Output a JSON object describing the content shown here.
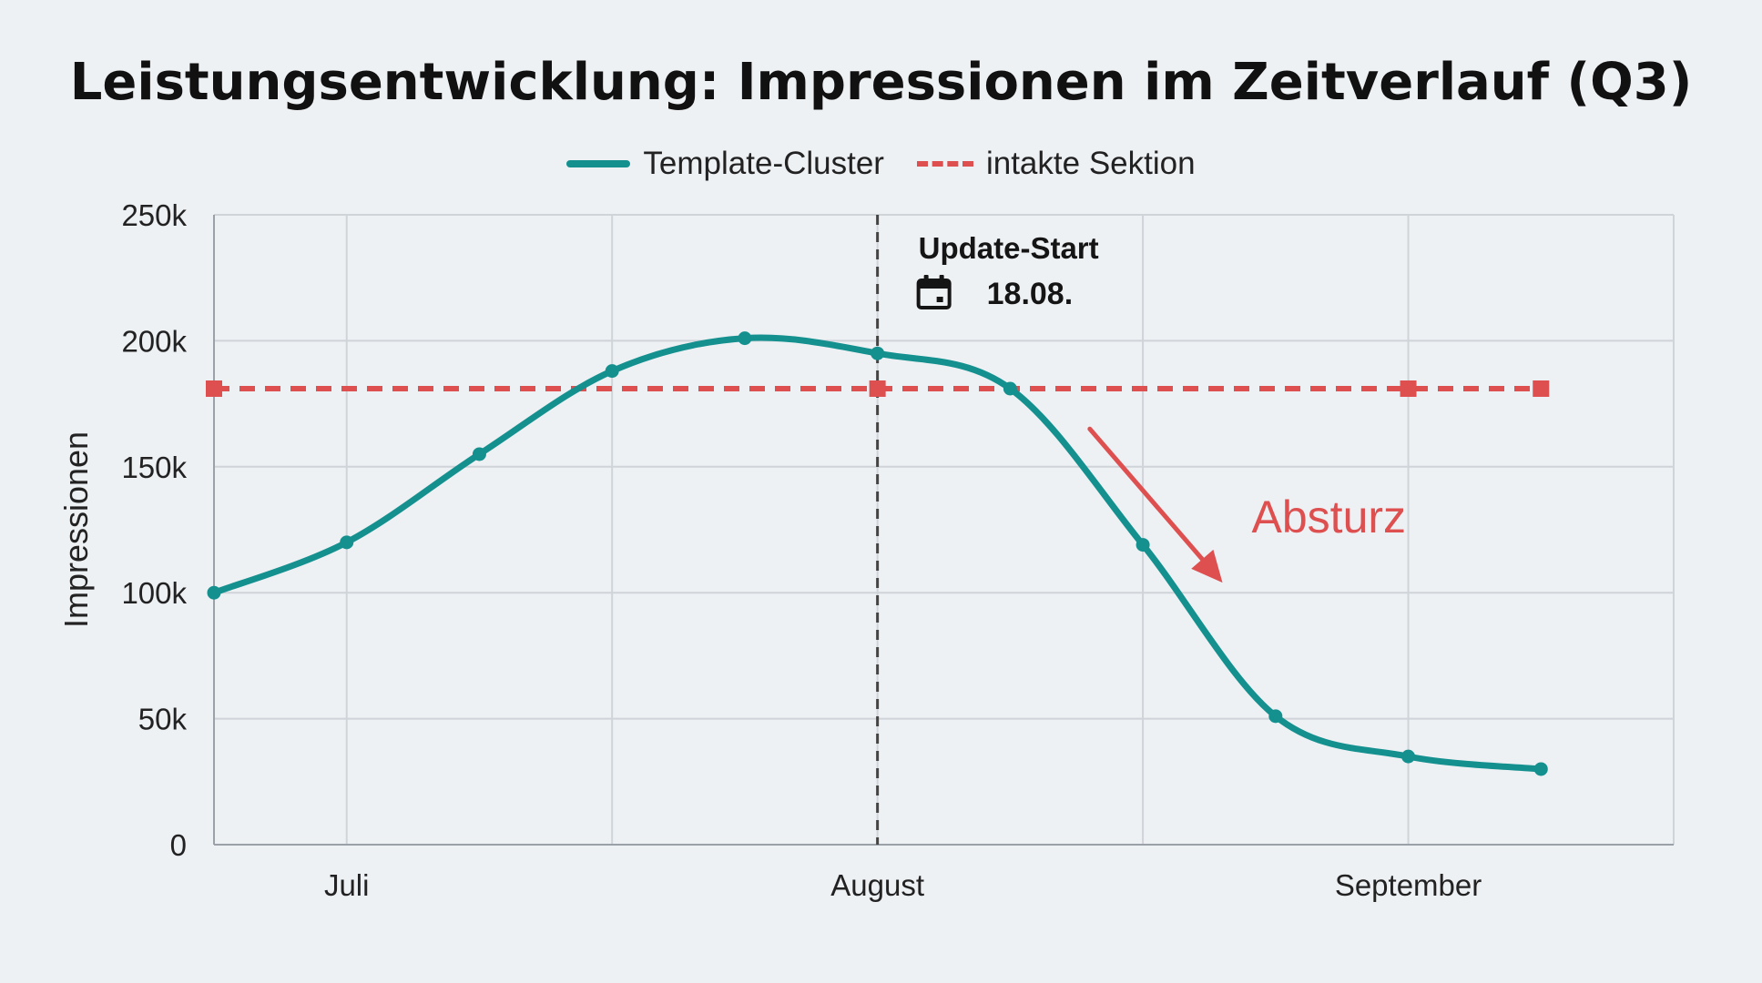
{
  "chart_data": {
    "type": "line",
    "title": "Leistungsentwicklung: Impressionen im Zeitverlauf (Q3)",
    "xlabel": "",
    "ylabel": "Impressionen",
    "x_ticks": [
      "Juli",
      "August",
      "September"
    ],
    "x_tick_positions": [
      1,
      5,
      9
    ],
    "xlim": [
      0,
      11
    ],
    "ylim": [
      0,
      250000
    ],
    "y_ticks": [
      0,
      50000,
      100000,
      150000,
      200000,
      250000
    ],
    "y_tick_labels": [
      "0",
      "50k",
      "100k",
      "150k",
      "200k",
      "250k"
    ],
    "grid": true,
    "legend_position": "top-center",
    "series": [
      {
        "name": "Template-Cluster",
        "color": "#14908f",
        "style": "solid",
        "x": [
          0,
          1,
          2,
          3,
          4,
          5,
          6,
          7,
          8,
          9,
          10
        ],
        "values": [
          100000,
          120000,
          155000,
          188000,
          201000,
          195000,
          181000,
          119000,
          51000,
          35000,
          30000
        ]
      },
      {
        "name": "intakte Sektion",
        "color": "#de4f50",
        "style": "dashed",
        "x": [
          0,
          5,
          9,
          10
        ],
        "values": [
          181000,
          181000,
          181000,
          181000
        ]
      }
    ],
    "annotations": [
      {
        "type": "vertical-line",
        "x": 5,
        "title": "Update-Start",
        "date": "18.08.",
        "icon": "calendar-icon"
      },
      {
        "type": "arrow",
        "label": "Absturz",
        "color": "#de4f50",
        "from": [
          6.6,
          165000
        ],
        "to": [
          7.6,
          104000
        ]
      }
    ]
  }
}
